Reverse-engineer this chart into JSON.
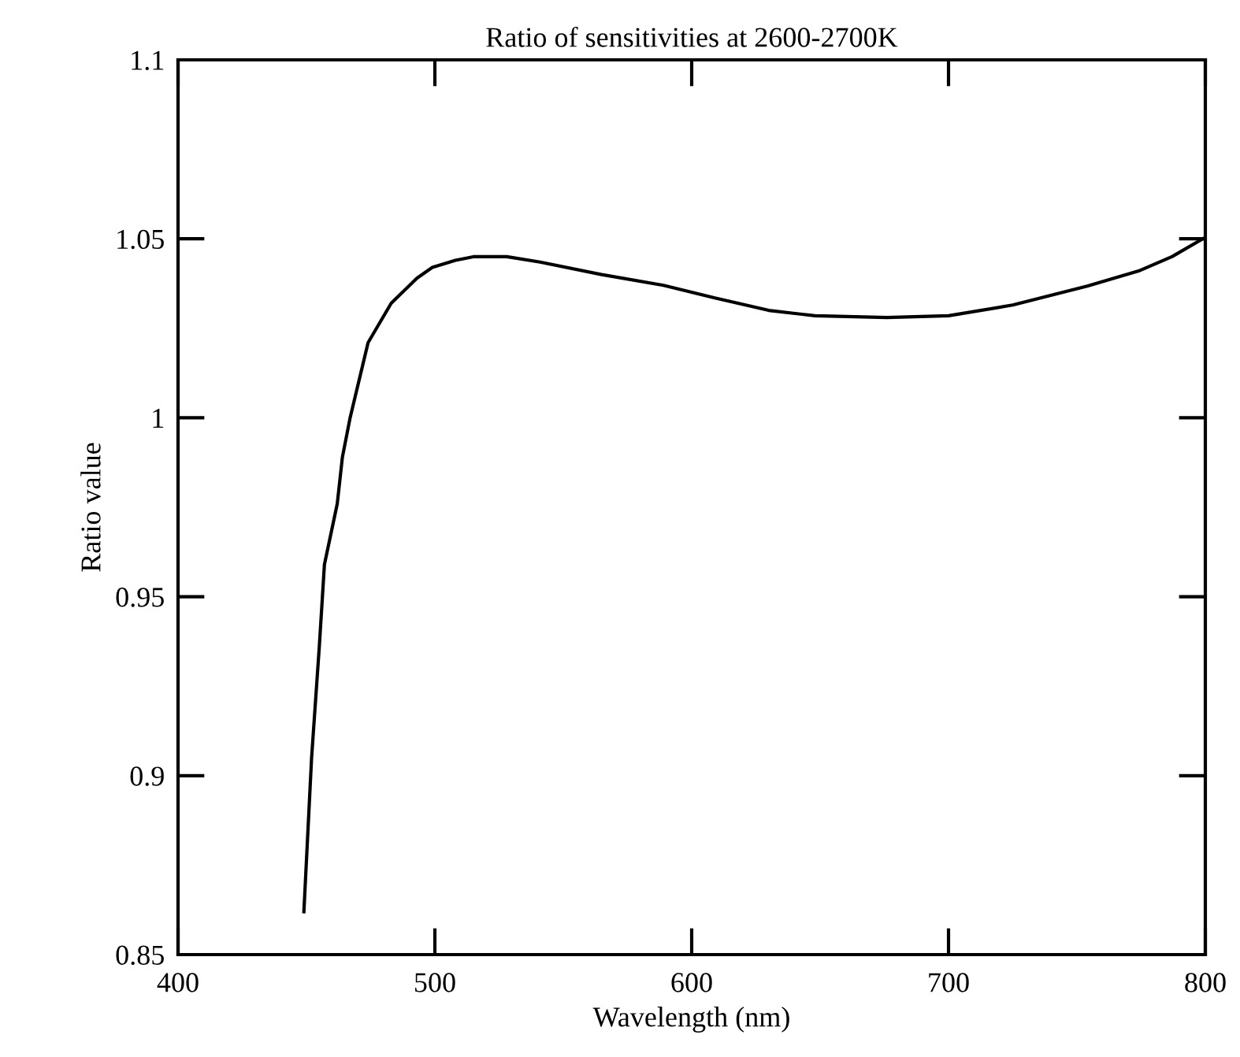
{
  "chart_data": {
    "type": "line",
    "title": "Ratio of sensitivities at 2600-2700K",
    "xlabel": "Wavelength (nm)",
    "ylabel": "Ratio value",
    "xlim": [
      400,
      800
    ],
    "ylim": [
      0.85,
      1.1
    ],
    "xticks": [
      400,
      500,
      600,
      700,
      800
    ],
    "yticks": [
      0.85,
      0.9,
      0.95,
      1,
      1.05,
      1.1
    ],
    "grid": false,
    "marker": "none",
    "line_style": "solid",
    "series": [
      {
        "color": "#000000",
        "x": [
          449,
          452,
          455,
          457,
          462,
          464,
          467,
          470,
          474,
          483,
          493,
          499,
          508,
          515,
          528,
          541,
          565,
          589,
          609,
          630,
          648,
          676,
          700,
          725,
          754,
          774,
          787,
          799
        ],
        "values": [
          0.862,
          0.905,
          0.936,
          0.959,
          0.976,
          0.989,
          1.0,
          1.009,
          1.021,
          1.032,
          1.039,
          1.042,
          1.044,
          1.045,
          1.045,
          1.0435,
          1.04,
          1.037,
          1.0335,
          1.03,
          1.0285,
          1.028,
          1.0285,
          1.0315,
          1.0368,
          1.041,
          1.045,
          1.05
        ]
      }
    ]
  }
}
